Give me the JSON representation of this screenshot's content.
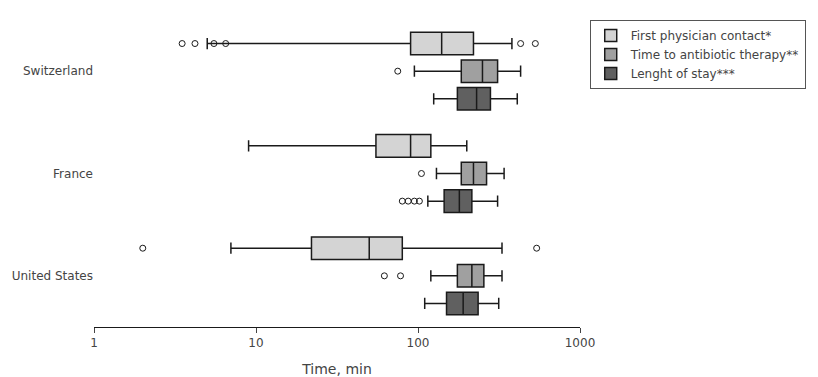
{
  "chart_data": {
    "type": "box",
    "orientation": "horizontal",
    "xlabel": "Time, min",
    "categories": [
      "Switzerland",
      "France",
      "United States"
    ],
    "series": [
      {
        "name": "First physician contact*",
        "color": "#d4d4d4",
        "values": [
          {
            "whislo": 5,
            "q1": 90,
            "med": 140,
            "q3": 220,
            "whishi": 380,
            "fliers": [
              3.5,
              4.2,
              5.5,
              6.5,
              430,
              530
            ]
          },
          {
            "whislo": 9,
            "q1": 55,
            "med": 90,
            "q3": 120,
            "whishi": 200,
            "fliers": []
          },
          {
            "whislo": 7,
            "q1": 22,
            "med": 50,
            "q3": 80,
            "whishi": 330,
            "fliers": [
              2,
              540
            ]
          }
        ]
      },
      {
        "name": "Time to antibiotic therapy**",
        "color": "#a0a0a0",
        "values": [
          {
            "whislo": 95,
            "q1": 185,
            "med": 250,
            "q3": 310,
            "whishi": 430,
            "fliers": [
              75
            ]
          },
          {
            "whislo": 130,
            "q1": 185,
            "med": 220,
            "q3": 265,
            "whishi": 340,
            "fliers": [
              105
            ]
          },
          {
            "whislo": 120,
            "q1": 175,
            "med": 215,
            "q3": 255,
            "whishi": 330,
            "fliers": [
              62,
              78
            ]
          }
        ]
      },
      {
        "name": "Lenght of stay***",
        "color": "#606060",
        "values": [
          {
            "whislo": 125,
            "q1": 175,
            "med": 230,
            "q3": 280,
            "whishi": 410,
            "fliers": []
          },
          {
            "whislo": 115,
            "q1": 145,
            "med": 180,
            "q3": 215,
            "whishi": 310,
            "fliers": [
              80,
              87,
              95,
              102
            ]
          },
          {
            "whislo": 110,
            "q1": 150,
            "med": 190,
            "q3": 235,
            "whishi": 315,
            "fliers": []
          }
        ]
      }
    ],
    "xlim": [
      1,
      1000
    ],
    "xticks": [
      1,
      10,
      100,
      1000
    ],
    "log": "x",
    "grid": false,
    "legend": "upper right"
  }
}
